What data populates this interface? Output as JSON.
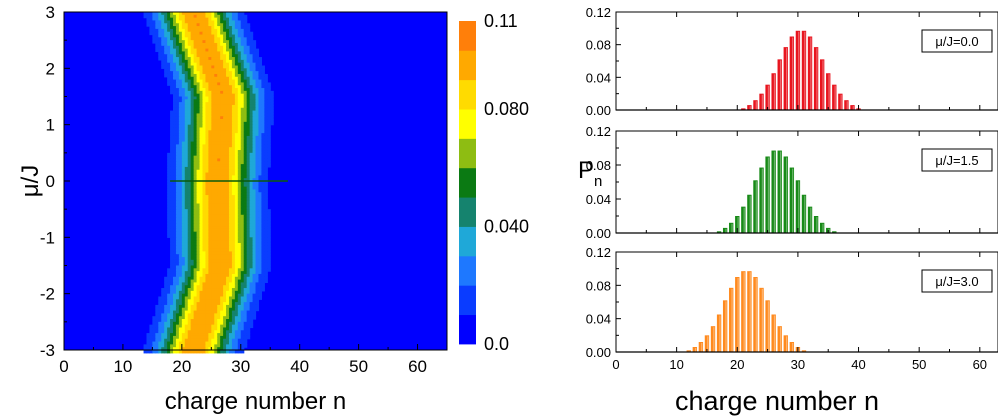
{
  "chart_data": [
    {
      "type": "heatmap",
      "title": "",
      "xlabel": "charge number n",
      "ylabel": "μ/J",
      "xlim": [
        0,
        65
      ],
      "ylim": [
        -3,
        3
      ],
      "x_ticks": [
        0,
        10,
        20,
        30,
        40,
        50,
        60
      ],
      "y_ticks": [
        -3,
        -2,
        -1,
        0,
        1,
        2,
        3
      ],
      "colorbar": {
        "range": [
          0.0,
          0.11
        ],
        "tick_values": [
          0.11,
          0.08,
          0.04,
          0.0
        ],
        "tick_labels": [
          "0.11",
          "0.080",
          "0.040",
          "0.0"
        ],
        "colors": [
          "#0000ff",
          "#0a3cff",
          "#1e78ff",
          "#1fa8d8",
          "#15836e",
          "#0b7a13",
          "#8ebd12",
          "#ffff00",
          "#ffdb00",
          "#ffa900",
          "#ff7f0a"
        ]
      },
      "center_ridge": [
        {
          "mu": 3.0,
          "n": 22.0
        },
        {
          "mu": 1.5,
          "n": 27.0
        },
        {
          "mu": 0.0,
          "n": 26.0
        },
        {
          "mu": -1.5,
          "n": 26.5
        },
        {
          "mu": -3.0,
          "n": 22.0
        }
      ],
      "peak_probability": 0.1,
      "ridge_width_sigma": 4.0,
      "annotation": "discontinuity line at μ/J = 0 for n ≈ 18–38"
    },
    {
      "type": "bar",
      "ylabel": "P_n",
      "xlabel": "charge number n",
      "xlim": [
        0,
        63
      ],
      "ylim": [
        0,
        0.12
      ],
      "x_ticks": [
        0,
        10,
        20,
        30,
        40,
        50,
        60
      ],
      "y_ticks": [
        0.0,
        0.04,
        0.08,
        0.12
      ],
      "y_tick_labels": [
        "0.00",
        "0.04",
        "0.08",
        "0.12"
      ],
      "series": [
        {
          "name": "μ/J=0.0",
          "color": "#e8141e",
          "n": [
            21,
            22,
            23,
            24,
            25,
            26,
            27,
            28,
            29,
            30,
            31,
            32,
            33,
            34,
            35,
            36,
            37,
            38,
            39,
            40
          ],
          "values": [
            0.002,
            0.006,
            0.012,
            0.02,
            0.031,
            0.045,
            0.062,
            0.077,
            0.09,
            0.097,
            0.097,
            0.09,
            0.077,
            0.062,
            0.045,
            0.031,
            0.02,
            0.012,
            0.006,
            0.002
          ]
        },
        {
          "name": "μ/J=1.5",
          "color": "#178a17",
          "n": [
            17,
            18,
            19,
            20,
            21,
            22,
            23,
            24,
            25,
            26,
            27,
            28,
            29,
            30,
            31,
            32,
            33,
            34,
            35,
            36
          ],
          "values": [
            0.002,
            0.006,
            0.012,
            0.02,
            0.031,
            0.045,
            0.062,
            0.077,
            0.09,
            0.097,
            0.097,
            0.09,
            0.077,
            0.062,
            0.045,
            0.031,
            0.02,
            0.012,
            0.006,
            0.002
          ]
        },
        {
          "name": "μ/J=3.0",
          "color": "#ff8a1e",
          "n": [
            12,
            13,
            14,
            15,
            16,
            17,
            18,
            19,
            20,
            21,
            22,
            23,
            24,
            25,
            26,
            27,
            28,
            29,
            30,
            31
          ],
          "values": [
            0.002,
            0.006,
            0.012,
            0.02,
            0.031,
            0.045,
            0.062,
            0.077,
            0.09,
            0.097,
            0.097,
            0.09,
            0.077,
            0.062,
            0.045,
            0.031,
            0.02,
            0.012,
            0.006,
            0.002
          ]
        }
      ]
    }
  ]
}
